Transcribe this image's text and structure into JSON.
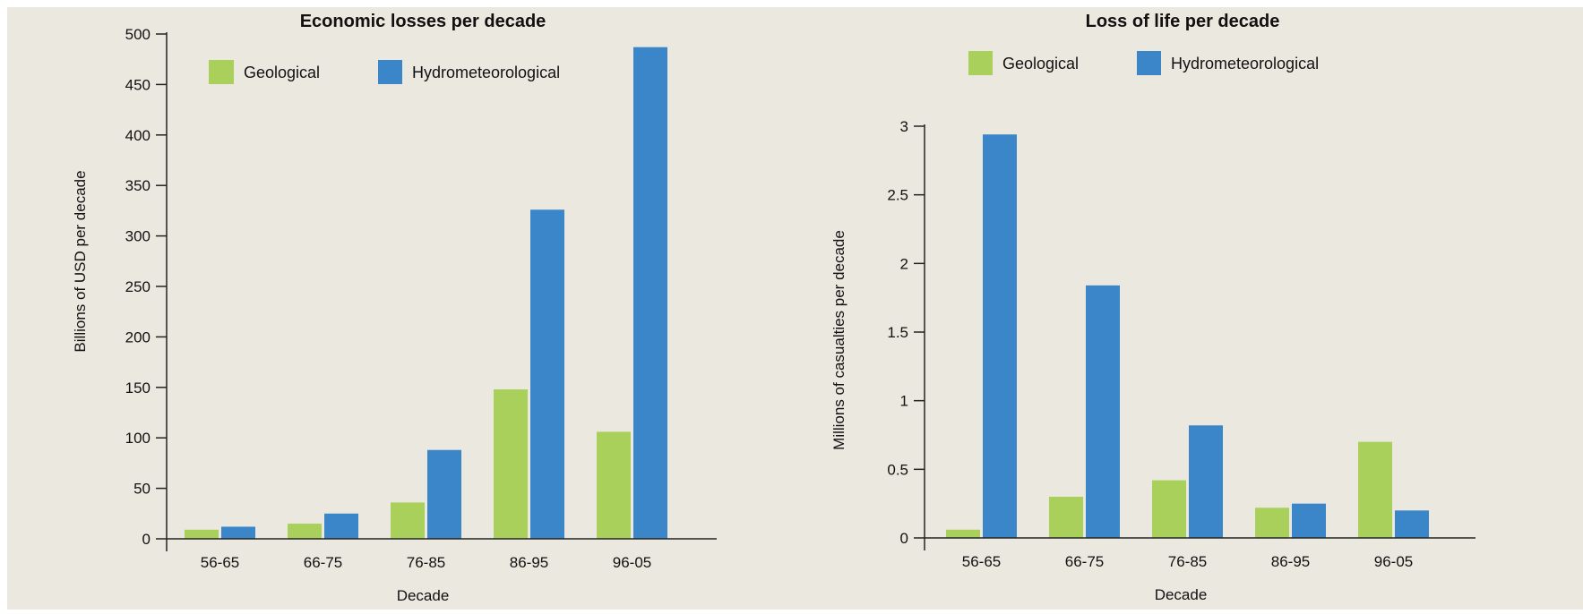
{
  "colors": {
    "background": "#ebe8df",
    "geological": "#a8d05a",
    "hydrometeorological": "#3a86c8",
    "axis": "#222222"
  },
  "chart_data": [
    {
      "type": "bar",
      "title": "Economic losses per decade",
      "xlabel": "Decade",
      "ylabel": "Billions of USD per decade",
      "categories": [
        "56-65",
        "66-75",
        "76-85",
        "86-95",
        "96-05"
      ],
      "series": [
        {
          "name": "Geological",
          "color": "#a8d05a",
          "values": [
            9,
            15,
            36,
            148,
            106
          ]
        },
        {
          "name": "Hydrometeorological",
          "color": "#3a86c8",
          "values": [
            12,
            25,
            88,
            326,
            487
          ]
        }
      ],
      "ylim": [
        0,
        500
      ],
      "yticks": [
        "0",
        "50",
        "100",
        "150",
        "200",
        "250",
        "300",
        "350",
        "400",
        "450",
        "500"
      ],
      "legend": "top-left",
      "grid": false
    },
    {
      "type": "bar",
      "title": "Loss of life per decade",
      "xlabel": "Decade",
      "ylabel": "Millions of casualties per decade",
      "categories": [
        "56-65",
        "66-75",
        "76-85",
        "86-95",
        "96-05"
      ],
      "series": [
        {
          "name": "Geological",
          "color": "#a8d05a",
          "values": [
            0.06,
            0.3,
            0.42,
            0.22,
            0.7
          ]
        },
        {
          "name": "Hydrometeorological",
          "color": "#3a86c8",
          "values": [
            2.94,
            1.84,
            0.82,
            0.25,
            0.2
          ]
        }
      ],
      "ylim": [
        0,
        3
      ],
      "yticks": [
        "0",
        "0.5",
        "1",
        "1.5",
        "2",
        "2.5",
        "3"
      ],
      "legend": "top",
      "grid": false
    }
  ]
}
